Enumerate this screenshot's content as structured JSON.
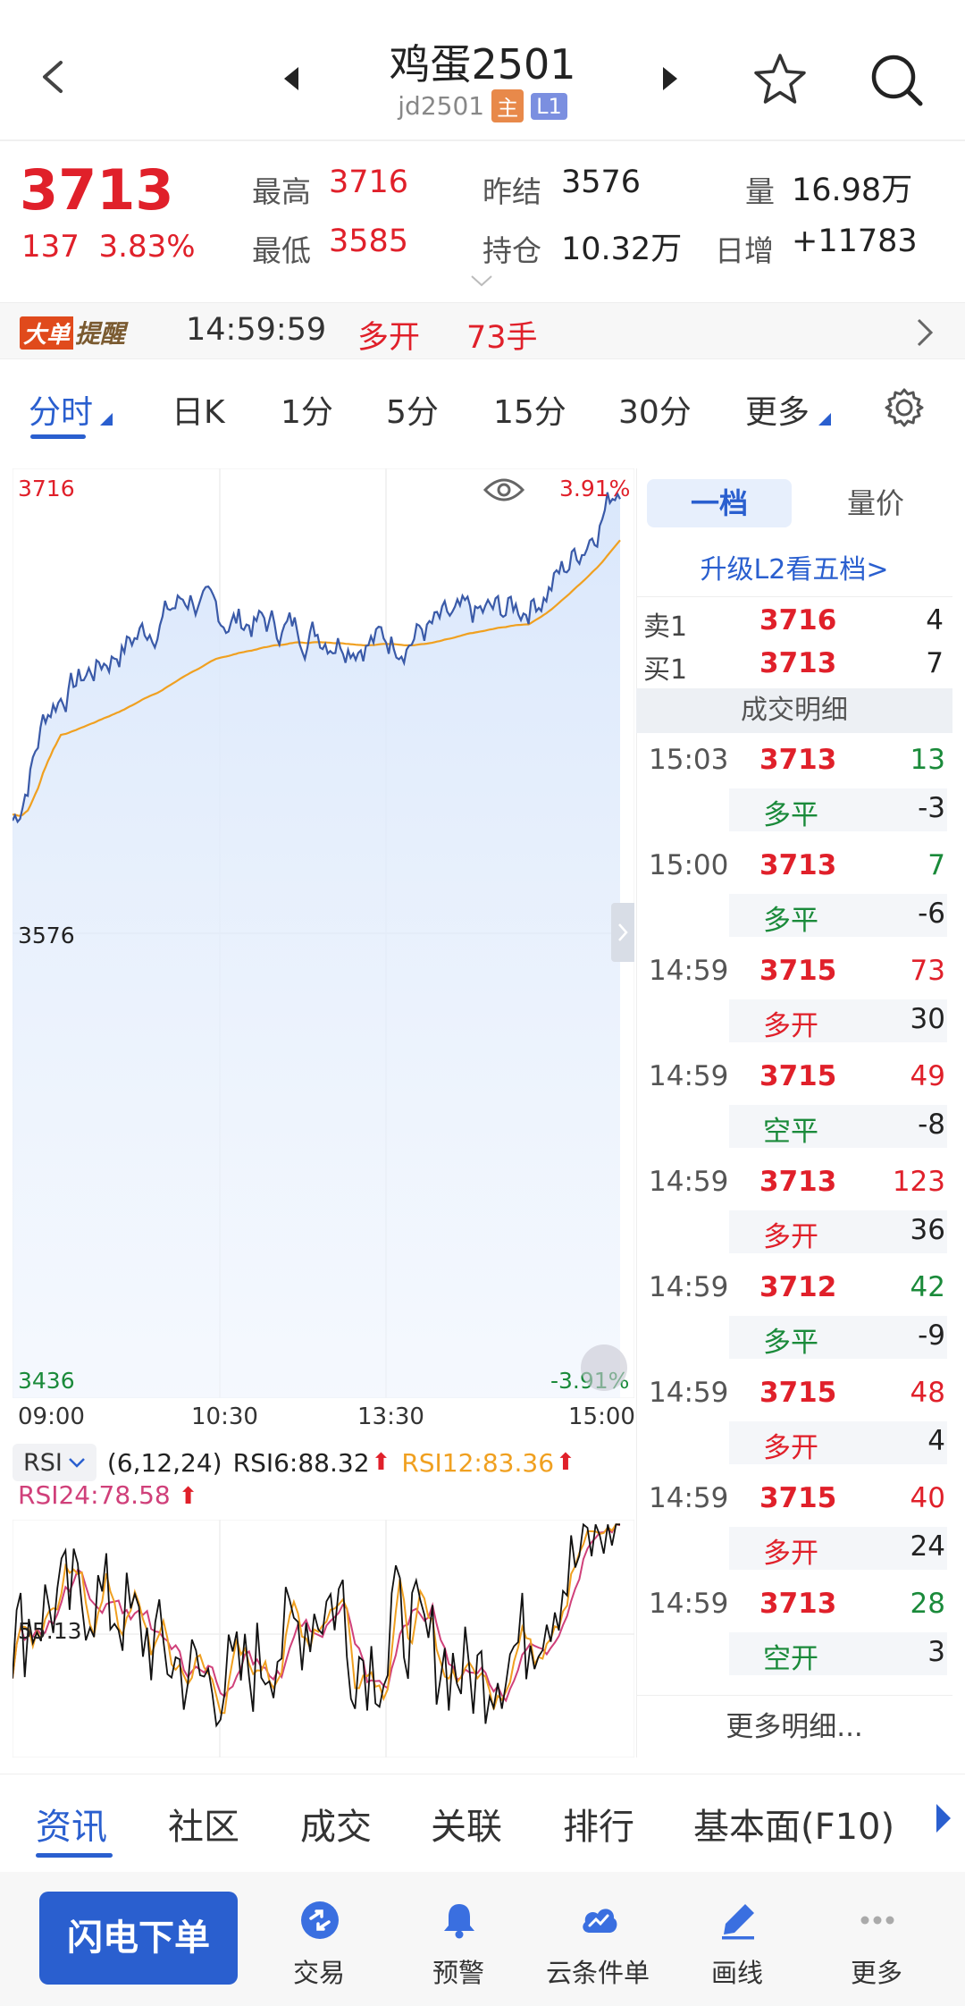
{
  "header": {
    "title": "鸡蛋2501",
    "code": "jd2501",
    "tag_main": "主",
    "tag_level": "L1"
  },
  "quote": {
    "last_price": "3713",
    "change": "137",
    "change_pct": "3.83%",
    "high_label": "最高",
    "high_value": "3716",
    "low_label": "最低",
    "low_value": "3585",
    "prev_settle_label": "昨结",
    "prev_settle_value": "3576",
    "open_interest_label": "持仓",
    "open_interest_value": "10.32万",
    "volume_label": "量",
    "volume_value": "16.98万",
    "daily_inc_label": "日增",
    "daily_inc_value": "+11783"
  },
  "alert": {
    "badge_a": "大单",
    "badge_b": "提醒",
    "time": "14:59:59",
    "action": "多开",
    "size": "73手"
  },
  "tabs": [
    "分时",
    "日K",
    "1分",
    "5分",
    "15分",
    "30分",
    "更多"
  ],
  "chart": {
    "y_top": "3716",
    "y_mid": "3576",
    "y_bottom": "3436",
    "pct_top": "3.91%",
    "pct_bottom": "-3.91%",
    "x_labels": [
      "09:00",
      "10:30",
      "13:30",
      "15:00"
    ]
  },
  "rsi": {
    "select_label": "RSI",
    "params": "(6,12,24)",
    "rsi6": "RSI6:88.32",
    "rsi12": "RSI12:83.36",
    "rsi24": "RSI24:78.58",
    "y_label": "55.13"
  },
  "panel": {
    "seg_active": "一档",
    "seg_other": "量价",
    "upgrade": "升级L2看五档>",
    "sell1_label": "卖1",
    "sell1_price": "3716",
    "sell1_vol": "4",
    "buy1_label": "买1",
    "buy1_price": "3713",
    "buy1_vol": "7",
    "trades_header": "成交明细",
    "trades": [
      {
        "time": "15:03",
        "price": "3713",
        "vol": "13",
        "type": "多平",
        "oi": "-3"
      },
      {
        "time": "15:00",
        "price": "3713",
        "vol": "7",
        "type": "多平",
        "oi": "-6"
      },
      {
        "time": "14:59",
        "price": "3715",
        "vol": "73",
        "type": "多开",
        "oi": "30"
      },
      {
        "time": "14:59",
        "price": "3715",
        "vol": "49",
        "type": "空平",
        "oi": "-8"
      },
      {
        "time": "14:59",
        "price": "3713",
        "vol": "123",
        "type": "多开",
        "oi": "36"
      },
      {
        "time": "14:59",
        "price": "3712",
        "vol": "42",
        "type": "多平",
        "oi": "-9"
      },
      {
        "time": "14:59",
        "price": "3715",
        "vol": "48",
        "type": "多开",
        "oi": "4"
      },
      {
        "time": "14:59",
        "price": "3715",
        "vol": "40",
        "type": "多开",
        "oi": "24"
      },
      {
        "time": "14:59",
        "price": "3713",
        "vol": "28",
        "type": "空开",
        "oi": "3"
      }
    ],
    "more": "更多明细..."
  },
  "info_tabs": [
    "资讯",
    "社区",
    "成交",
    "关联",
    "排行",
    "基本面(F10)"
  ],
  "bottom_bar": {
    "flash_order": "闪电下单",
    "items": [
      {
        "label": "交易",
        "icon": "trade-icon"
      },
      {
        "label": "预警",
        "icon": "bell-icon"
      },
      {
        "label": "云条件单",
        "icon": "cloud-order-icon"
      },
      {
        "label": "画线",
        "icon": "pen-icon"
      },
      {
        "label": "更多",
        "icon": "more-dots-icon"
      }
    ]
  },
  "colors": {
    "accent": "#2a5fcf",
    "up": "#e0202a",
    "down": "#1a8a3a",
    "price_line": "#3a5aa8",
    "avg_line": "#f0a020",
    "rsi6": "#111111",
    "rsi12": "#f0a020",
    "rsi24": "#d0407a"
  }
}
